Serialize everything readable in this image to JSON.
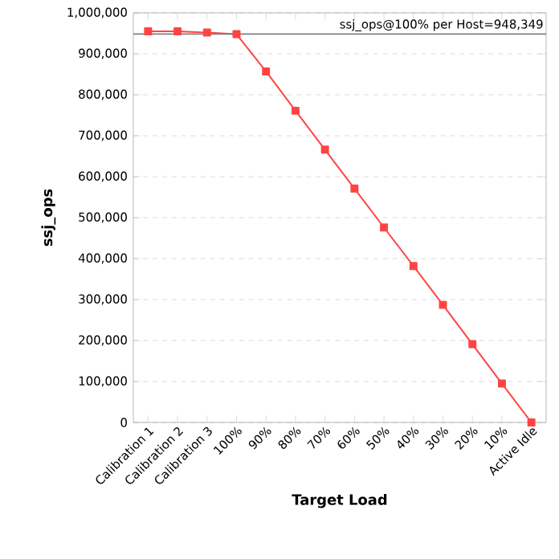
{
  "chart_data": {
    "type": "line",
    "xlabel": "Target Load",
    "ylabel": "ssj_ops",
    "categories": [
      "Calibration 1",
      "Calibration 2",
      "Calibration 3",
      "100%",
      "90%",
      "80%",
      "70%",
      "60%",
      "50%",
      "40%",
      "30%",
      "20%",
      "10%",
      "Active Idle"
    ],
    "series": [
      {
        "color": "#ff4444",
        "values": [
          955000,
          955000,
          952000,
          948000,
          857000,
          761000,
          666000,
          571000,
          476000,
          382000,
          287000,
          191000,
          95000,
          0
        ]
      }
    ],
    "ylim": [
      0,
      1000000
    ],
    "yticks": [
      0,
      {
        "value": 100000,
        "label": "100,000"
      },
      {
        "value": 200000,
        "label": "200,000"
      },
      {
        "value": 300000,
        "label": "300,000"
      },
      {
        "value": 400000,
        "label": "400,000"
      },
      {
        "value": 500000,
        "label": "500,000"
      },
      {
        "value": 600000,
        "label": "600,000"
      },
      {
        "value": 700000,
        "label": "700,000"
      },
      {
        "value": 800000,
        "label": "800,000"
      },
      {
        "value": 900000,
        "label": "900,000"
      },
      {
        "value": 1000000,
        "label": "1,000,000"
      }
    ],
    "ref_lines": [
      {
        "axis": "y",
        "value": 948349,
        "label": "ssj_ops@100% per Host=948,349",
        "color": "#808080"
      }
    ],
    "grid": "y",
    "marker": "square",
    "line_style": "solid"
  }
}
